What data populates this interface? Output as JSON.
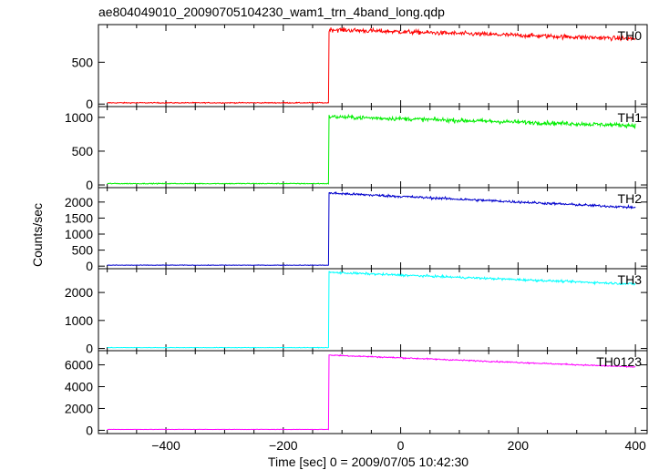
{
  "title": "ae804049010_20090705104230_wam1_trn_4band_long.qdp",
  "chart_data": {
    "type": "line",
    "title": "ae804049010_20090705104230_wam1_trn_4band_long.qdp",
    "xlabel": "Time [sec] 0 = 2009/07/05 10:42:30",
    "ylabel": "Counts/sec",
    "xlim": [
      -515,
      420
    ],
    "x_ticks": [
      -400,
      -200,
      0,
      200,
      400
    ],
    "x_tick_labels": [
      "−400",
      "−200",
      "0",
      "200",
      "400"
    ],
    "grid": false,
    "step_time": -122,
    "panels": [
      {
        "name": "TH0",
        "color": "#ff0000",
        "ylim": [
          -30,
          950
        ],
        "y_ticks": [
          0,
          500
        ],
        "y_tick_labels": [
          "0",
          "500"
        ],
        "x_start": -500,
        "x_end": 400,
        "pre_level": 15,
        "post_start": 890,
        "post_end": 780,
        "noise": 35
      },
      {
        "name": "TH1",
        "color": "#00ee00",
        "ylim": [
          -40,
          1160
        ],
        "y_ticks": [
          0,
          500,
          1000
        ],
        "y_tick_labels": [
          "0",
          "500",
          "1000"
        ],
        "x_start": -500,
        "x_end": 400,
        "pre_level": 20,
        "post_start": 1010,
        "post_end": 880,
        "noise": 40
      },
      {
        "name": "TH2",
        "color": "#0000cc",
        "ylim": [
          -80,
          2450
        ],
        "y_ticks": [
          0,
          500,
          1000,
          1500,
          2000
        ],
        "y_tick_labels": [
          "0",
          "500",
          "1000",
          "1500",
          "2000"
        ],
        "x_start": -500,
        "x_end": 400,
        "pre_level": 30,
        "post_start": 2280,
        "post_end": 1830,
        "noise": 50
      },
      {
        "name": "TH3",
        "color": "#00ffff",
        "ylim": [
          -80,
          2850
        ],
        "y_ticks": [
          0,
          1000,
          2000
        ],
        "y_tick_labels": [
          "0",
          "1000",
          "2000"
        ],
        "x_start": -500,
        "x_end": 400,
        "pre_level": 30,
        "post_start": 2720,
        "post_end": 2300,
        "noise": 50
      },
      {
        "name": "TH0123",
        "color": "#ff00ff",
        "ylim": [
          -300,
          7300
        ],
        "y_ticks": [
          0,
          2000,
          4000,
          6000
        ],
        "y_tick_labels": [
          "0",
          "2000",
          "4000",
          "6000"
        ],
        "x_start": -500,
        "x_end": 400,
        "pre_level": 80,
        "post_start": 6900,
        "post_end": 5800,
        "noise": 80
      }
    ]
  }
}
